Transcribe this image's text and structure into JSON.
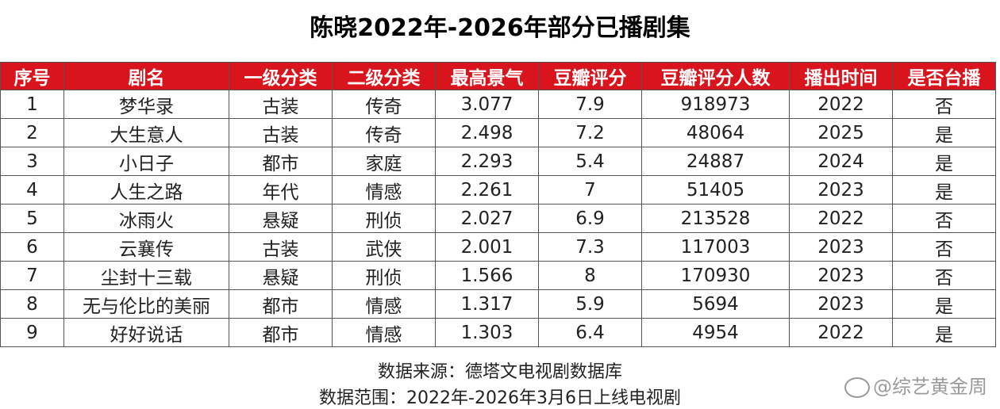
{
  "title": "陈晓2022年-2026年部分已播剧集",
  "chart_data": {
    "type": "table",
    "columns": [
      "序号",
      "剧名",
      "一级分类",
      "二级分类",
      "最高景气",
      "豆瓣评分",
      "豆瓣评分人数",
      "播出时间",
      "是否台播"
    ],
    "rows": [
      [
        "1",
        "梦华录",
        "古装",
        "传奇",
        "3.077",
        "7.9",
        "918973",
        "2022",
        "否"
      ],
      [
        "2",
        "大生意人",
        "古装",
        "传奇",
        "2.498",
        "7.2",
        "48064",
        "2025",
        "是"
      ],
      [
        "3",
        "小日子",
        "都市",
        "家庭",
        "2.293",
        "5.4",
        "24887",
        "2024",
        "是"
      ],
      [
        "4",
        "人生之路",
        "年代",
        "情感",
        "2.261",
        "7",
        "51405",
        "2023",
        "是"
      ],
      [
        "5",
        "冰雨火",
        "悬疑",
        "刑侦",
        "2.027",
        "6.9",
        "213528",
        "2022",
        "否"
      ],
      [
        "6",
        "云襄传",
        "古装",
        "武侠",
        "2.001",
        "7.3",
        "117003",
        "2023",
        "否"
      ],
      [
        "7",
        "尘封十三载",
        "悬疑",
        "刑侦",
        "1.566",
        "8",
        "170930",
        "2023",
        "否"
      ],
      [
        "8",
        "无与伦比的美丽",
        "都市",
        "情感",
        "1.317",
        "5.9",
        "5694",
        "2023",
        "是"
      ],
      [
        "9",
        "好好说话",
        "都市",
        "情感",
        "1.303",
        "6.4",
        "4954",
        "2022",
        "是"
      ]
    ],
    "header_color": "#d9141c"
  },
  "source": "数据来源：德塔文电视剧数据库",
  "range": "数据范围：2022年-2026年3月6日上线电视剧",
  "watermark": "@综艺黄金周"
}
